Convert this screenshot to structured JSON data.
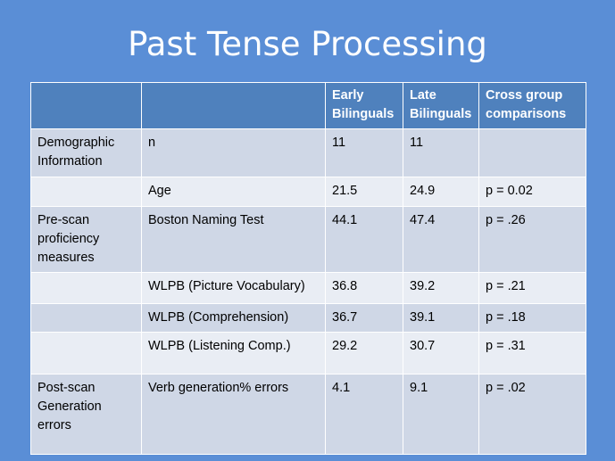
{
  "title": "Past Tense Processing",
  "table": {
    "headers": [
      "",
      "",
      "Early Bilinguals",
      "Late Bilinguals",
      "Cross group comparisons"
    ],
    "rows": [
      [
        "Demographic Information",
        "n",
        "11",
        "11",
        ""
      ],
      [
        "",
        "Age",
        "21.5",
        "24.9",
        "p = 0.02"
      ],
      [
        "Pre-scan proficiency measures",
        "Boston Naming Test",
        "44.1",
        "47.4",
        "p = .26"
      ],
      [
        "",
        "WLPB (Picture Vocabulary)",
        "36.8",
        "39.2",
        "p = .21"
      ],
      [
        "",
        "WLPB (Comprehension)",
        "36.7",
        "39.1",
        "p = .18"
      ],
      [
        "",
        "WLPB (Listening Comp.)",
        "29.2",
        "30.7",
        "p = .31"
      ],
      [
        "Post-scan Generation errors",
        "Verb generation% errors",
        "4.1",
        "9.1",
        "p = .02"
      ]
    ]
  },
  "colors": {
    "background": "#5a8ed6",
    "header": "#4f81bd",
    "row_dark": "#cfd7e6",
    "row_light": "#e9edf4"
  }
}
